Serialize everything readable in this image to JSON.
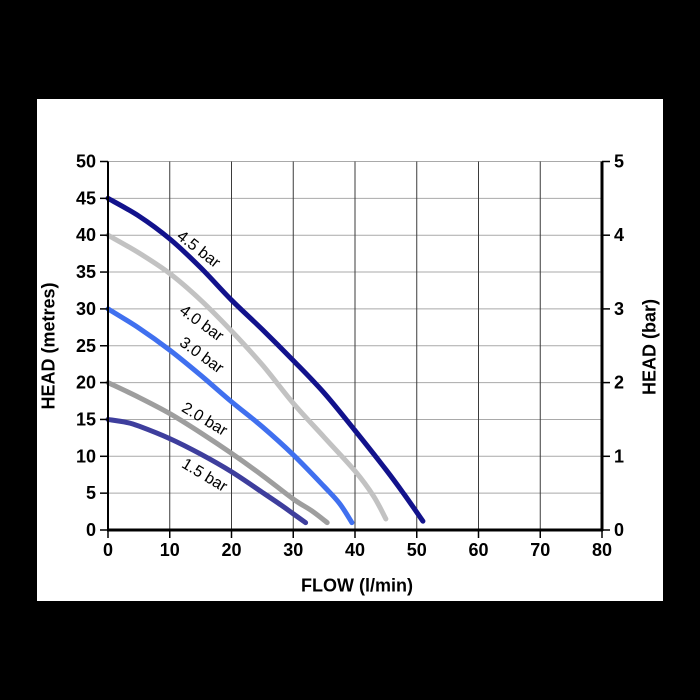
{
  "page": {
    "background": "#000000",
    "paper_color": "#ffffff"
  },
  "chart_data": {
    "type": "line",
    "title": "",
    "xlabel": "FLOW (l/min)",
    "ylabel_left": "HEAD (metres)",
    "ylabel_right": "HEAD (bar)",
    "xlim": [
      0,
      80
    ],
    "ylim_left": [
      0,
      50
    ],
    "ylim_right": [
      0,
      5
    ],
    "x_ticks": [
      0,
      10,
      20,
      30,
      40,
      50,
      60,
      70,
      80
    ],
    "y_ticks_left": [
      0,
      5,
      10,
      15,
      20,
      25,
      30,
      35,
      40,
      45,
      50
    ],
    "y_ticks_right": [
      0,
      1,
      2,
      3,
      4,
      5
    ],
    "metres_per_bar": 10,
    "grid": {
      "horizontal_step": 5,
      "vertical_step": 10,
      "horizontal_color": "#a9a9a9",
      "vertical_color": "#3b3b3b",
      "axis_color": "#000000"
    },
    "legend_position": "inline-labels-on-curves",
    "series": [
      {
        "name": "4.5 bar",
        "color": "#12128c",
        "points": [
          [
            0,
            45
          ],
          [
            5,
            42.6
          ],
          [
            10,
            39.5
          ],
          [
            15,
            35.6
          ],
          [
            20,
            31.2
          ],
          [
            25,
            27.2
          ],
          [
            30,
            23
          ],
          [
            35,
            18.6
          ],
          [
            40,
            13.5
          ],
          [
            45,
            8.2
          ],
          [
            48,
            4.8
          ],
          [
            51,
            1.2
          ]
        ]
      },
      {
        "name": "4.0 bar",
        "color": "#c2c2c2",
        "points": [
          [
            0,
            40
          ],
          [
            5,
            37.6
          ],
          [
            10,
            34.8
          ],
          [
            15,
            31.2
          ],
          [
            20,
            27
          ],
          [
            25,
            22.4
          ],
          [
            30,
            17.2
          ],
          [
            35,
            12.6
          ],
          [
            40,
            8
          ],
          [
            43,
            4.6
          ],
          [
            45,
            1.5
          ]
        ]
      },
      {
        "name": "3.0 bar",
        "color": "#4070ef",
        "points": [
          [
            0,
            30
          ],
          [
            5,
            27.4
          ],
          [
            10,
            24.4
          ],
          [
            15,
            21
          ],
          [
            20,
            17.4
          ],
          [
            25,
            14
          ],
          [
            30,
            10.2
          ],
          [
            35,
            5.9
          ],
          [
            37.5,
            3.6
          ],
          [
            39.5,
            1
          ]
        ]
      },
      {
        "name": "2.0 bar",
        "color": "#9e9e9e",
        "points": [
          [
            0,
            20
          ],
          [
            5,
            18
          ],
          [
            10,
            15.8
          ],
          [
            15,
            13.2
          ],
          [
            20,
            10.4
          ],
          [
            25,
            7.4
          ],
          [
            30,
            4.2
          ],
          [
            33,
            2.6
          ],
          [
            35.5,
            1
          ]
        ]
      },
      {
        "name": "1.5 bar",
        "color": "#3e3e9d",
        "points": [
          [
            0,
            15
          ],
          [
            3,
            14.6
          ],
          [
            5,
            14.1
          ],
          [
            10,
            12.4
          ],
          [
            15,
            10.3
          ],
          [
            20,
            7.9
          ],
          [
            25,
            5.1
          ],
          [
            28,
            3.4
          ],
          [
            30,
            2.2
          ],
          [
            32,
            1
          ]
        ]
      }
    ],
    "curve_labels": [
      {
        "text": "4.5 bar",
        "flow": 14.6,
        "head": 38.0,
        "angle": 38
      },
      {
        "text": "4.0 bar",
        "flow": 15.1,
        "head": 27.9,
        "angle": 36
      },
      {
        "text": "3.0 bar",
        "flow": 15.1,
        "head": 23.6,
        "angle": 36
      },
      {
        "text": "2.0 bar",
        "flow": 15.5,
        "head": 14.9,
        "angle": 31
      },
      {
        "text": "1.5 bar",
        "flow": 15.5,
        "head": 7.3,
        "angle": 31
      }
    ]
  }
}
